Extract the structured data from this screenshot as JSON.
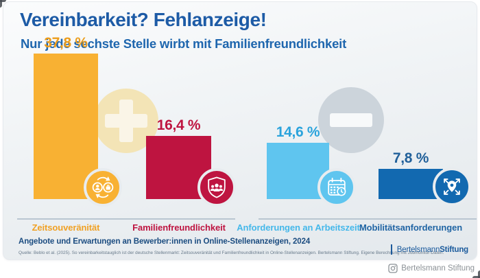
{
  "chart_data": {
    "type": "bar",
    "title": "Vereinbarkeit? Fehlanzeige!",
    "subtitle": "Nur jede sechste Stelle wirbt mit Familienfreundlichkeit",
    "unit": "%",
    "categories": [
      "Zeitsouveränität",
      "Familienfreundlichkeit",
      "Anforderungen an Arbeitszeit",
      "Mobilitätsanforderungen"
    ],
    "values": [
      37.8,
      16.4,
      14.6,
      7.8
    ],
    "value_labels": [
      "37,8 %",
      "16,4 %",
      "14,6 %",
      "7,8 %"
    ],
    "bar_colors": [
      "#F8B133",
      "#BE1440",
      "#5FC5EF",
      "#1269B0"
    ],
    "value_colors": [
      "#EC9D1C",
      "#BE1440",
      "#2AA3DC",
      "#21609A"
    ],
    "category_colors": [
      "#F0A125",
      "#BE1440",
      "#45B8EA",
      "#2165A4"
    ],
    "icons": [
      "work-life-exchange-icon",
      "family-shield-icon",
      "calendar-clock-icon",
      "mobility-arrows-icon"
    ],
    "ylim": [
      0,
      40
    ],
    "grid": false,
    "legend": false,
    "annotations": [
      {
        "name": "plus-circle",
        "symbol": "+",
        "color": "#F3E4B6",
        "covers": [
          "Zeitsouveränität",
          "Familienfreundlichkeit"
        ]
      },
      {
        "name": "minus-circle",
        "symbol": "−",
        "color": "#CCD4DB",
        "covers": [
          "Anforderungen an Arbeitszeit",
          "Mobilitätsanforderungen"
        ]
      }
    ]
  },
  "footer": {
    "note": "Angebote und Erwartungen an Bewerber:innen in Online-Stellenanzeigen, 2024",
    "source": "Quelle: Beblo et al. (2025). So vereinbarkeitstauglich ist der deutsche Stellenmarkt: Zeitsouveränität und Familienfreundlichkeit in Online-Stellenanzeigen. Bertelsmann Stiftung. Eigene Berechnung mit Jobmonitor-Daten.",
    "logo_regular": "Bertelsmann",
    "logo_bold": "Stiftung"
  },
  "watermark": {
    "label": "Bertelsmann Stiftung"
  }
}
